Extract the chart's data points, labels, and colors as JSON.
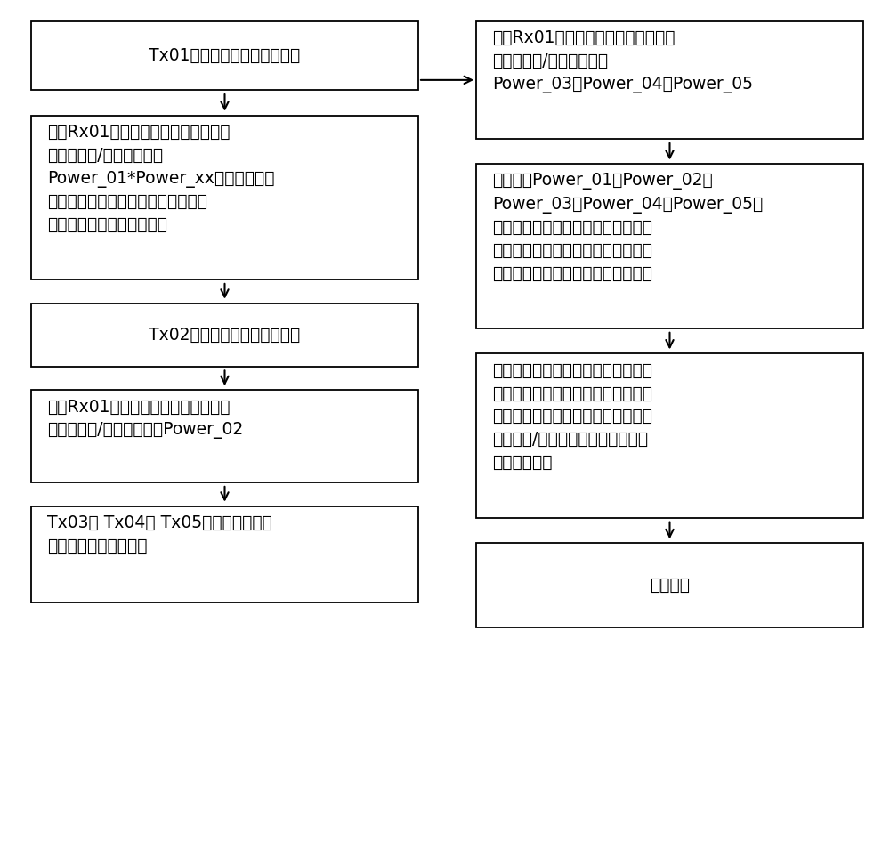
{
  "bg_color": "#ffffff",
  "box_edge_color": "#000000",
  "arrow_color": "#000000",
  "text_color": "#000000",
  "figsize": [
    10.0,
    9.46
  ],
  "boxes": [
    {
      "id": "L1",
      "col": "left",
      "row": 0,
      "text": "Tx01天线发出功率寻找脉冲帧",
      "align": "center"
    },
    {
      "id": "L2",
      "col": "left",
      "row": 1,
      "text": "判断Rx01天线是否接收到功率寻找脉\n冲帧以及收/发端的功率值\nPower_01*Power_xx是一个数据集\n合，包括有峰值电流、平均电流、占\n空比、频率及间隙等多参数",
      "align": "left"
    },
    {
      "id": "L3",
      "col": "left",
      "row": 2,
      "text": "Tx02天线发出功率寻找脉冲帧",
      "align": "center"
    },
    {
      "id": "L4",
      "col": "left",
      "row": 3,
      "text": "判断Rx01天线是否接收到功率寻找脉\n冲帧以及收/发端的功率值Power_02",
      "align": "left"
    },
    {
      "id": "L5",
      "col": "left",
      "row": 4,
      "text": "Tx03、 Tx04、 Tx05天线分别发出功\n率寻找脉冲帧（同上）",
      "align": "left"
    },
    {
      "id": "R1",
      "col": "right",
      "row": 0,
      "text": "判断Rx01天线是否接收到功率寻找脉\n冲帧以及收/发端的功率值\nPower_03、Power_04、Power_05",
      "align": "left"
    },
    {
      "id": "R2",
      "col": "right",
      "row": 1,
      "text": "分析计算Power_01、Power_02、\nPower_03、Power_04、Power_05大\n小，根据植入端的充电电流监测值及\n体外发射端的能量大小，找出最佳线\n圈位置，启动最佳线圈进行无线充电",
      "align": "left"
    },
    {
      "id": "R3",
      "col": "right",
      "row": 2,
      "text": "充电过程中间隔性进行最佳功率点查\n询，当发现最佳功率点移动时，体外\n充电端自动进行最佳充电线圈切换，\n保证体内/体外处于最优充电状态，\n提高充电效率",
      "align": "left"
    },
    {
      "id": "R4",
      "col": "right",
      "row": 3,
      "text": "充电结束",
      "align": "center"
    }
  ]
}
